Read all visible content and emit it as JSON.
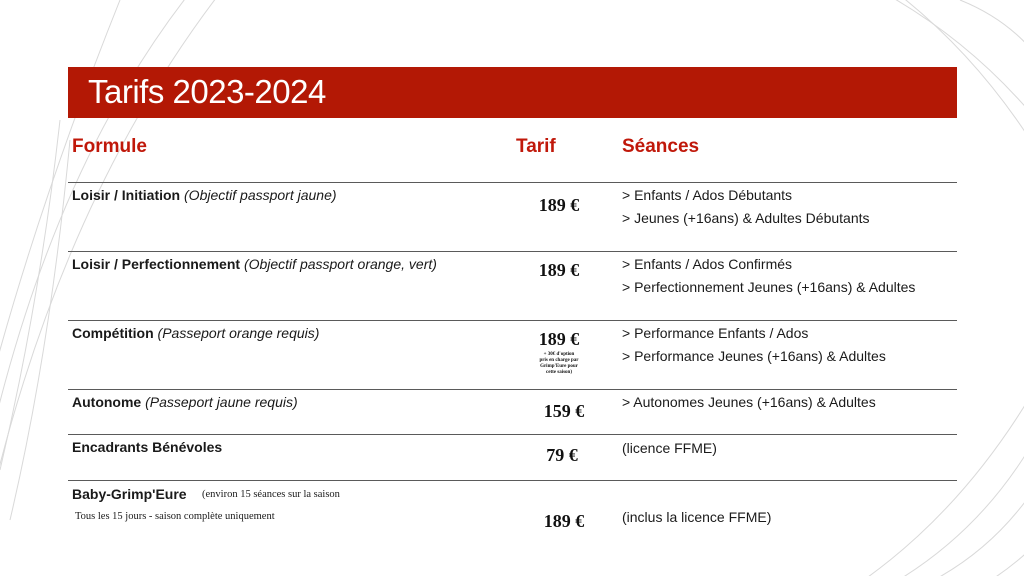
{
  "title": "Tarifs 2023-2024",
  "headers": {
    "formule": "Formule",
    "tarif": "Tarif",
    "seances": "Séances"
  },
  "colors": {
    "banner": "#b31805",
    "header_text": "#c0180a"
  },
  "rows": [
    {
      "name": "Loisir / Initiation",
      "detail": "(Objectif passport jaune)",
      "price": "189 €",
      "seances": [
        "> Enfants / Ados Débutants",
        "> Jeunes (+16ans) & Adultes Débutants"
      ]
    },
    {
      "name": "Loisir / Perfectionnement",
      "detail": "(Objectif passport orange, vert)",
      "price": "189 €",
      "seances": [
        "> Enfants / Ados Confirmés",
        "> Perfectionnement Jeunes (+16ans) & Adultes"
      ]
    },
    {
      "name": "Compétition",
      "detail": "(Passeport orange requis)",
      "price": "189 €",
      "price_note": [
        "+ 30€ d'option",
        "pris en charge par",
        "Grimp'Eure pour",
        "cette saison)"
      ],
      "seances": [
        "> Performance Enfants / Ados",
        "> Performance Jeunes (+16ans) & Adultes"
      ]
    },
    {
      "name": "Autonome",
      "detail": "(Passeport jaune requis)",
      "price": "159 €",
      "seances": [
        "> Autonomes Jeunes (+16ans) & Adultes"
      ]
    },
    {
      "name": "Encadrants Bénévoles",
      "detail": "",
      "price": "79 €",
      "seances": [
        "(licence FFME)"
      ]
    },
    {
      "name": "Baby-Grimp'Eure",
      "detail": "(environ 15 séances sur la saison",
      "subline": "Tous les 15 jours - saison complète uniquement",
      "price": "189 €",
      "seances": [
        "(inclus la licence FFME)"
      ]
    }
  ]
}
